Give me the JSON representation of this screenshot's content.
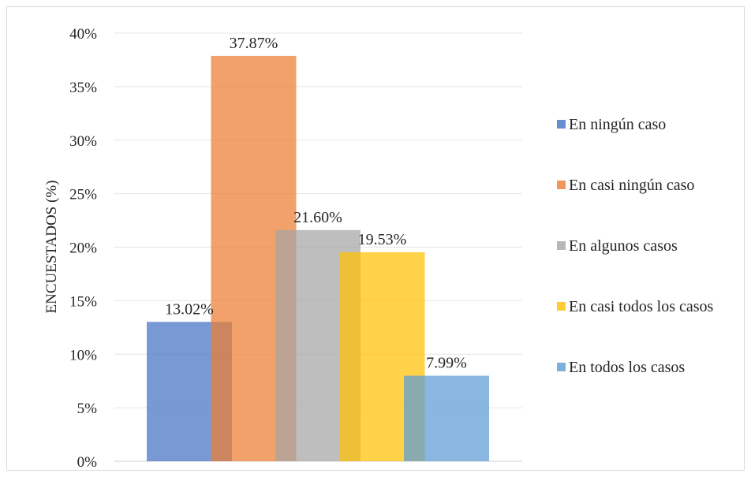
{
  "chart_data": {
    "type": "bar",
    "ylabel": "ENCUESTADOS (%)",
    "ylim": [
      0,
      40
    ],
    "yticks": [
      "0%",
      "5%",
      "10%",
      "15%",
      "20%",
      "25%",
      "30%",
      "35%",
      "40%"
    ],
    "grid": true,
    "legend_position": "right",
    "series": [
      {
        "name": "En ningún caso",
        "value": 13.02,
        "label": "13.02%",
        "color": "#4472C4"
      },
      {
        "name": "En casi ningún caso",
        "value": 37.87,
        "label": "37.87%",
        "color": "#ED7D31"
      },
      {
        "name": "En algunos casos",
        "value": 21.6,
        "label": "21.60%",
        "color": "#A5A5A5"
      },
      {
        "name": "En casi todos los casos",
        "value": 19.53,
        "label": "19.53%",
        "color": "#FFC000"
      },
      {
        "name": "En todos los casos",
        "value": 7.99,
        "label": "7.99%",
        "color": "#5B9BD5"
      }
    ]
  }
}
